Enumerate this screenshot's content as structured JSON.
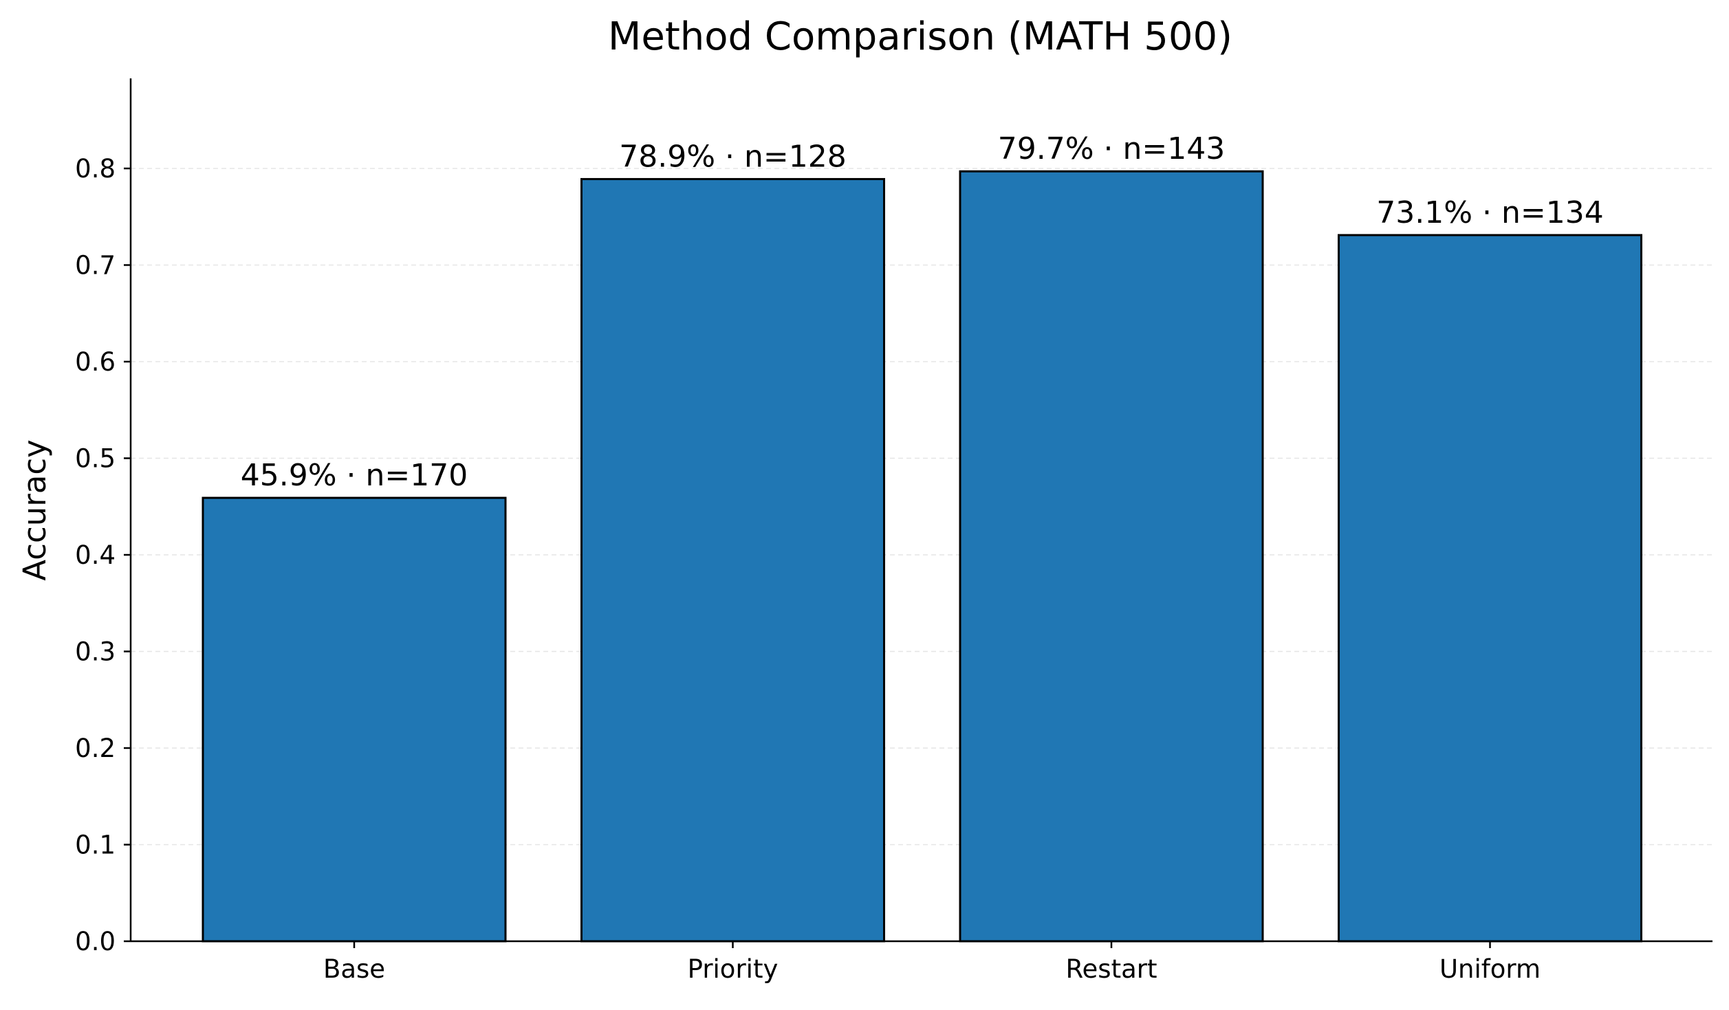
{
  "chart_data": {
    "type": "bar",
    "title": "Method Comparison (MATH 500)",
    "xlabel": "",
    "ylabel": "Accuracy",
    "categories": [
      "Base",
      "Priority",
      "Restart",
      "Uniform"
    ],
    "values": [
      0.459,
      0.789,
      0.797,
      0.731
    ],
    "bar_labels": [
      "45.9% · n=170",
      "78.9% · n=128",
      "79.7% · n=143",
      "73.1% · n=134"
    ],
    "yticks": [
      0.0,
      0.1,
      0.2,
      0.3,
      0.4,
      0.5,
      0.6,
      0.7,
      0.8
    ],
    "ytick_labels": [
      "0.0",
      "0.1",
      "0.2",
      "0.3",
      "0.4",
      "0.5",
      "0.6",
      "0.7",
      "0.8"
    ],
    "ylim": [
      0,
      0.893
    ],
    "grid": "horizontal dashed",
    "legend": "none",
    "colors": {
      "bar_fill": "#2077b4",
      "bar_edge": "#000000",
      "grid": "#e6e6e6",
      "axis": "#000000"
    }
  }
}
